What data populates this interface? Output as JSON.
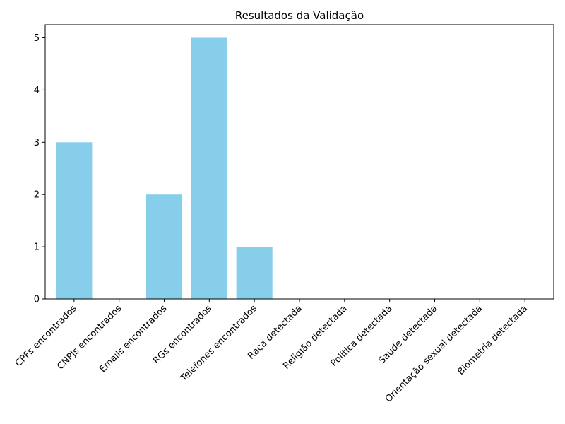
{
  "chart_data": {
    "type": "bar",
    "title": "Resultados da Validação",
    "xlabel": "",
    "ylabel": "",
    "categories": [
      "CPFs encontrados",
      "CNPJs encontrados",
      "Emails encontrados",
      "RGs encontrados",
      "Telefones encontrados",
      "Raça detectada",
      "Religião detectada",
      "Política detectada",
      "Saúde detectada",
      "Orientação sexual detectada",
      "Biometria detectada"
    ],
    "values": [
      3,
      0,
      2,
      5,
      1,
      0,
      0,
      0,
      0,
      0,
      0
    ],
    "ylim": [
      0,
      5.25
    ],
    "yticks": [
      0,
      1,
      2,
      3,
      4,
      5
    ],
    "bar_color": "#87ceeb",
    "grid": false,
    "legend": "none"
  }
}
